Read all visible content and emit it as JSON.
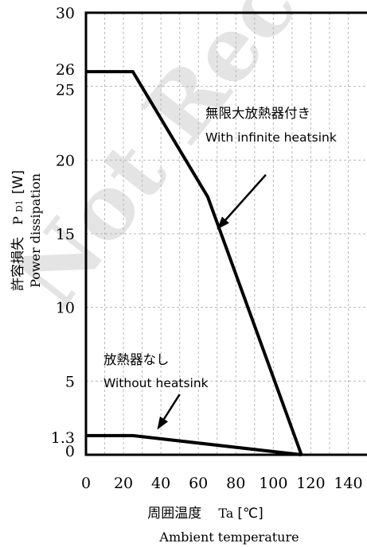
{
  "watermark": "Not Recommended",
  "chart_data": {
    "type": "line",
    "xlim": [
      0,
      150
    ],
    "ylim": [
      0,
      30
    ],
    "x_ticks": [
      0,
      20,
      40,
      60,
      80,
      100,
      120,
      140
    ],
    "y_ticks": [
      0,
      1.3,
      5,
      10,
      15,
      20,
      25,
      26,
      30
    ],
    "grid": true,
    "series": [
      {
        "name": "With infinite heatsink",
        "x": [
          0,
          25,
          65,
          115
        ],
        "y": [
          26,
          26,
          17.5,
          0
        ]
      },
      {
        "name": "Without heatsink",
        "x": [
          0,
          25,
          115
        ],
        "y": [
          1.3,
          1.3,
          0
        ]
      }
    ],
    "annotations": [
      {
        "jp": "無限大放熱器付き",
        "en": "With infinite heatsink",
        "arrow_from": [
          96,
          19
        ],
        "arrow_to": [
          70,
          15.3
        ]
      },
      {
        "jp": "放熱器なし",
        "en": "Without heatsink",
        "arrow_from": [
          50,
          4.1
        ],
        "arrow_to": [
          38,
          1.7
        ]
      }
    ],
    "ylabel_jp": "許容損失",
    "ylabel_symbol": "P",
    "ylabel_subscript": "D1",
    "ylabel_unit": "[W]",
    "ylabel_en": "Power dissipation",
    "xlabel_jp": "周囲温度",
    "xlabel_symbol": "Ta",
    "xlabel_unit": "[℃]",
    "xlabel_en": "Ambient temperature"
  }
}
